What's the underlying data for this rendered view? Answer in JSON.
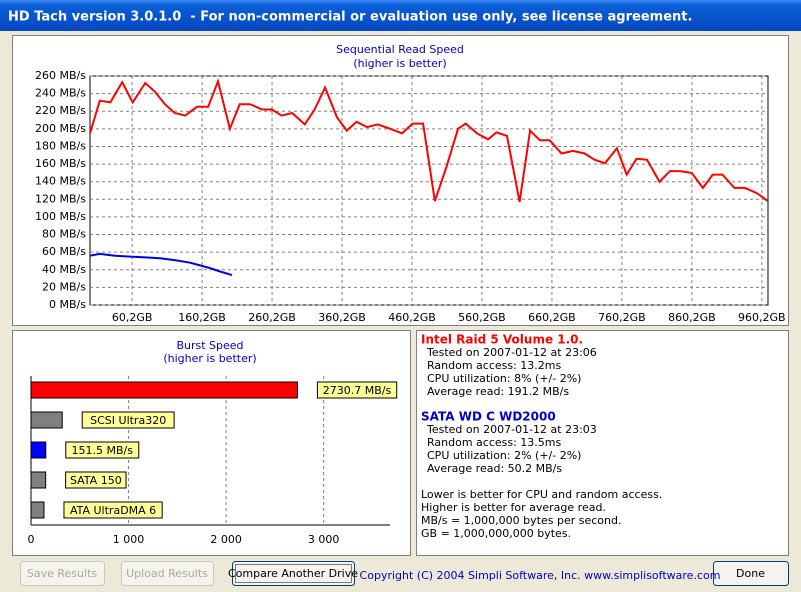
{
  "window_title": "HD Tach version 3.0.1.0  - For non-commercial or evaluation use only, see license agreement.",
  "chart_data": [
    {
      "type": "line",
      "title": "Sequential Read Speed",
      "subtitle": "(higher is better)",
      "xlim": [
        0,
        969
      ],
      "ylim": [
        0,
        260
      ],
      "grid": true,
      "xticks": [
        {
          "value": 60.2,
          "label": "60,2GB"
        },
        {
          "value": 160.2,
          "label": "160,2GB"
        },
        {
          "value": 260.2,
          "label": "260,2GB"
        },
        {
          "value": 360.2,
          "label": "360,2GB"
        },
        {
          "value": 460.2,
          "label": "460,2GB"
        },
        {
          "value": 560.2,
          "label": "560,2GB"
        },
        {
          "value": 660.2,
          "label": "660,2GB"
        },
        {
          "value": 760.2,
          "label": "760,2GB"
        },
        {
          "value": 860.2,
          "label": "860,2GB"
        },
        {
          "value": 960.2,
          "label": "960,2GB"
        }
      ],
      "yticks": [
        {
          "value": 0,
          "label": "0 MB/s"
        },
        {
          "value": 20,
          "label": "20 MB/s"
        },
        {
          "value": 40,
          "label": "40 MB/s"
        },
        {
          "value": 60,
          "label": "60 MB/s"
        },
        {
          "value": 80,
          "label": "80 MB/s"
        },
        {
          "value": 100,
          "label": "100 MB/s"
        },
        {
          "value": 120,
          "label": "120 MB/s"
        },
        {
          "value": 140,
          "label": "140 MB/s"
        },
        {
          "value": 160,
          "label": "160 MB/s"
        },
        {
          "value": 180,
          "label": "180 MB/s"
        },
        {
          "value": 200,
          "label": "200 MB/s"
        },
        {
          "value": 220,
          "label": "220 MB/s"
        },
        {
          "value": 240,
          "label": "240 MB/s"
        },
        {
          "value": 260,
          "label": "260 MB/s"
        }
      ],
      "series": [
        {
          "color": "#ff0000",
          "x": [
            0,
            14,
            29,
            46,
            61,
            79,
            93,
            107,
            121,
            136,
            153,
            169,
            183,
            200,
            214,
            229,
            246,
            260,
            274,
            289,
            307,
            321,
            336,
            353,
            367,
            381,
            396,
            411,
            429,
            446,
            461,
            476,
            493,
            510,
            526,
            537,
            553,
            569,
            581,
            596,
            614,
            629,
            643,
            657,
            674,
            690,
            707,
            721,
            736,
            753,
            767,
            781,
            796,
            814,
            829,
            843,
            860,
            876,
            890,
            904,
            921,
            936,
            953,
            969
          ],
          "values": [
            195,
            232,
            230,
            253,
            230,
            252,
            242,
            228,
            218,
            215,
            225,
            225,
            254,
            200,
            228,
            228,
            222,
            222,
            215,
            218,
            205,
            222,
            247,
            213,
            198,
            208,
            202,
            205,
            200,
            195,
            206,
            206,
            118,
            158,
            200,
            206,
            195,
            188,
            196,
            192,
            117,
            198,
            187,
            187,
            172,
            175,
            172,
            165,
            161,
            178,
            148,
            166,
            165,
            140,
            152,
            152,
            150,
            133,
            148,
            148,
            133,
            133,
            127,
            118
          ]
        },
        {
          "color": "#0000e0",
          "x": [
            0,
            14,
            36,
            57,
            79,
            100,
            121,
            143,
            157,
            171,
            186,
            203
          ],
          "values": [
            56,
            58,
            56,
            55,
            54,
            53,
            51,
            48,
            45,
            42,
            38,
            34
          ]
        }
      ]
    },
    {
      "type": "hbar",
      "title": "Burst Speed",
      "subtitle": "(higher is better)",
      "xlim": [
        0,
        3680
      ],
      "grid": true,
      "xticks": [
        0,
        {
          "value": 1000,
          "label": "1 000"
        },
        {
          "value": 2000,
          "label": "2 000"
        },
        {
          "value": 3000,
          "label": "3 000"
        }
      ],
      "categories": [
        null,
        "SCSI Ultra320",
        null,
        "SATA 150",
        "ATA UltraDMA 6"
      ],
      "values": [
        2730.7,
        320,
        151.5,
        150,
        133
      ],
      "value_labels": [
        "2730.7 MB/s",
        null,
        "151.5 MB/s",
        null,
        null
      ],
      "colors": [
        "#ff0000",
        "#808080",
        "#0000ff",
        "#808080",
        "#808080"
      ]
    }
  ],
  "info": {
    "drives": [
      {
        "heading": "Intel Raid 5 Volume 1.0.",
        "color": "#ff0000",
        "lines": [
          "Tested on 2007-01-12 at 23:06",
          "Random access: 13.2ms",
          "CPU utilization: 8% (+/- 2%)",
          "Average read: 191.2 MB/s"
        ]
      },
      {
        "heading": "SATA WD C WD2000",
        "color": "#0000c0",
        "lines": [
          "Tested on 2007-01-12 at 23:03",
          "Random access: 13.5ms",
          "CPU utilization: 2% (+/- 2%)",
          "Average read: 50.2 MB/s"
        ]
      }
    ],
    "notes": [
      "Lower is better for CPU and random access.",
      "Higher is better for average read.",
      "MB/s = 1,000,000 bytes per second.",
      "GB = 1,000,000,000 bytes."
    ]
  },
  "buttons": [
    "Save Results",
    "Upload Results",
    "Compare Another Drive",
    "Done"
  ],
  "copyright": "Copyright (C) 2004 Simpli Software, Inc. www.simplisoftware.com"
}
